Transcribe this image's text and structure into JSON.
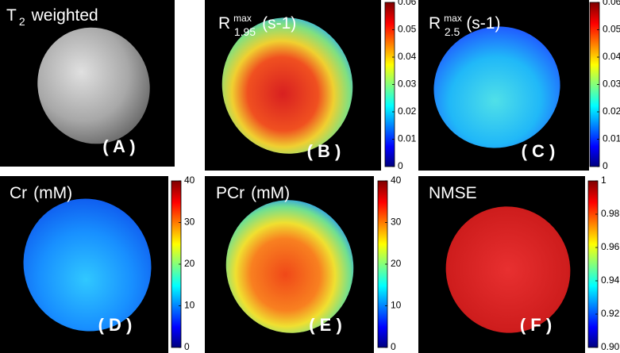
{
  "panels": [
    {
      "title": {
        "base": "T",
        "sub": "2",
        "rest": "weighted"
      },
      "label": "( A )"
    },
    {
      "title": {
        "base": "R",
        "sup": "max",
        "sub": "1.95",
        "rest": "(s-1)"
      },
      "label": "( B )",
      "colorbar": {
        "clim": [
          0,
          0.06
        ],
        "ticks": [
          0,
          0.01,
          0.02,
          0.03,
          0.04,
          0.05,
          0.06
        ]
      }
    },
    {
      "title": {
        "base": "R",
        "sup": "max",
        "sub": "2.5",
        "rest": "(s-1)"
      },
      "label": "( C )",
      "colorbar": {
        "clim": [
          0,
          0.06
        ],
        "ticks": [
          0,
          0.01,
          0.02,
          0.03,
          0.04,
          0.05,
          0.06
        ]
      }
    },
    {
      "title": {
        "base": "Cr",
        "rest": "(mM)"
      },
      "label": "( D )",
      "colorbar": {
        "clim": [
          0,
          40
        ],
        "ticks": [
          0,
          10,
          20,
          30,
          40
        ]
      }
    },
    {
      "title": {
        "base": "PCr",
        "rest": "(mM)"
      },
      "label": "( E )",
      "colorbar": {
        "clim": [
          0,
          40
        ],
        "ticks": [
          0,
          10,
          20,
          30,
          40
        ]
      }
    },
    {
      "title": {
        "base": "NMSE"
      },
      "label": "( F )",
      "colorbar": {
        "clim": [
          0.9,
          1
        ],
        "ticks": [
          {
            "value": 0.9,
            "label": "0.90"
          },
          {
            "value": 0.92,
            "label": "0.92"
          },
          {
            "value": 0.94,
            "label": "0.94"
          },
          {
            "value": 0.96,
            "label": "0.96"
          },
          {
            "value": 0.98,
            "label": "0.98"
          },
          1
        ]
      }
    }
  ]
}
